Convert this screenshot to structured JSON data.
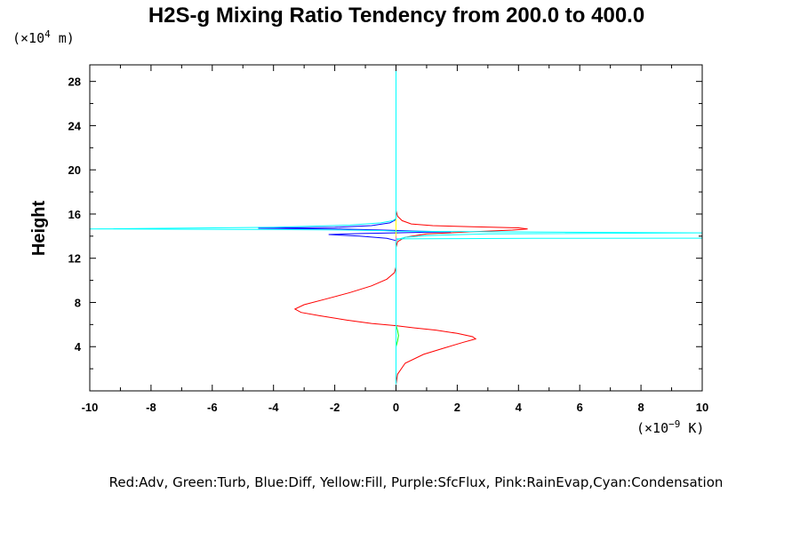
{
  "chart_data": {
    "type": "line",
    "title": "H2S-g Mixing Ratio Tendency from 200.0 to 400.0",
    "ylabel": "Height",
    "y_unit_prefix": "(×10",
    "y_unit_exp": "4",
    "y_unit_suffix": " m)",
    "x_unit_prefix": "(×10",
    "x_unit_exp": "−9",
    "x_unit_suffix": " K)",
    "xlim": [
      -10,
      10
    ],
    "ylim": [
      0,
      29.5
    ],
    "x_ticks": [
      -10,
      -8,
      -6,
      -4,
      -2,
      0,
      2,
      4,
      6,
      8,
      10
    ],
    "x_tick_labels": [
      "-10",
      "-8",
      "-6",
      "-4",
      "-2",
      "0",
      "2",
      "4",
      "6",
      "8",
      "10"
    ],
    "y_ticks": [
      4,
      8,
      12,
      16,
      20,
      24,
      28
    ],
    "y_tick_labels": [
      "4",
      "8",
      "12",
      "16",
      "20",
      "24",
      "28"
    ],
    "legend_text": "Red:Adv, Green:Turb, Blue:Diff, Yellow:Fill, Purple:SfcFlux, Pink:RainEvap,Cyan:Condensation",
    "series": [
      {
        "name": "Adv",
        "color": "#ff0000",
        "points": [
          [
            0,
            0.6
          ],
          [
            0.05,
            1.5
          ],
          [
            0.3,
            2.5
          ],
          [
            0.9,
            3.3
          ],
          [
            1.6,
            3.9
          ],
          [
            2.2,
            4.4
          ],
          [
            2.6,
            4.7
          ],
          [
            2.5,
            4.9
          ],
          [
            2.0,
            5.2
          ],
          [
            1.3,
            5.5
          ],
          [
            0.6,
            5.7
          ],
          [
            0.0,
            5.9
          ],
          [
            -0.8,
            6.1
          ],
          [
            -1.6,
            6.4
          ],
          [
            -2.5,
            6.8
          ],
          [
            -3.1,
            7.1
          ],
          [
            -3.3,
            7.4
          ],
          [
            -3.0,
            7.8
          ],
          [
            -2.3,
            8.3
          ],
          [
            -1.5,
            8.9
          ],
          [
            -0.8,
            9.5
          ],
          [
            -0.3,
            10.1
          ],
          [
            -0.05,
            10.7
          ],
          [
            0,
            11.2
          ],
          [
            0,
            13.0
          ],
          [
            0.05,
            13.5
          ],
          [
            0.3,
            13.9
          ],
          [
            1.0,
            14.2
          ],
          [
            2.5,
            14.4
          ],
          [
            3.8,
            14.55
          ],
          [
            4.3,
            14.65
          ],
          [
            4.0,
            14.75
          ],
          [
            2.5,
            14.85
          ],
          [
            1.2,
            14.95
          ],
          [
            0.5,
            15.1
          ],
          [
            0.2,
            15.4
          ],
          [
            0.05,
            15.8
          ],
          [
            0,
            16.3
          ]
        ]
      },
      {
        "name": "Turb",
        "color": "#00ff00",
        "points": [
          [
            0,
            0.6
          ],
          [
            0,
            4.0
          ],
          [
            0.05,
            4.5
          ],
          [
            0.08,
            5.0
          ],
          [
            0.05,
            5.5
          ],
          [
            0,
            5.9
          ],
          [
            0,
            13.5
          ]
        ]
      },
      {
        "name": "Diff",
        "color": "#0000ff",
        "points": [
          [
            0,
            13.6
          ],
          [
            -0.3,
            13.8
          ],
          [
            -1.2,
            14.0
          ],
          [
            -2.2,
            14.15
          ],
          [
            -1.0,
            14.25
          ],
          [
            0,
            14.3
          ],
          [
            0.8,
            14.35
          ],
          [
            1.8,
            14.4
          ],
          [
            0.8,
            14.45
          ],
          [
            -0.4,
            14.55
          ],
          [
            -2.0,
            14.65
          ],
          [
            -4.5,
            14.72
          ],
          [
            -2.0,
            14.8
          ],
          [
            -0.8,
            14.95
          ],
          [
            -0.2,
            15.2
          ],
          [
            0,
            15.5
          ]
        ]
      },
      {
        "name": "Fill",
        "color": "#ffff00",
        "points": [
          [
            0,
            0.6
          ],
          [
            0,
            16.0
          ]
        ]
      },
      {
        "name": "SfcFlux",
        "color": "#800080",
        "points": [
          [
            0,
            0.6
          ],
          [
            0,
            1.0
          ]
        ]
      },
      {
        "name": "RainEvap",
        "color": "#ff69b4",
        "points": [
          [
            0,
            13.5
          ],
          [
            0,
            14.0
          ]
        ]
      },
      {
        "name": "Condensation",
        "color": "#00ffff",
        "points": [
          [
            0,
            29.5
          ],
          [
            0,
            15.6
          ],
          [
            -0.1,
            15.4
          ],
          [
            -0.5,
            15.2
          ],
          [
            -1.5,
            15.0
          ],
          [
            -4.0,
            14.8
          ],
          [
            -10,
            14.65
          ],
          [
            -4.0,
            14.6
          ],
          [
            -1.5,
            14.55
          ],
          [
            -0.4,
            14.5
          ],
          [
            0,
            14.45
          ],
          [
            3.0,
            14.4
          ],
          [
            10,
            14.3
          ],
          [
            3.0,
            14.2
          ],
          [
            1.0,
            14.05
          ],
          [
            0.3,
            13.9
          ],
          [
            0.05,
            13.7
          ],
          [
            0,
            13.5
          ],
          [
            0,
            0.6
          ]
        ]
      },
      {
        "name": "Condensation",
        "color": "#00ffff",
        "points": [
          [
            0,
            13.75
          ],
          [
            2.0,
            13.78
          ],
          [
            4.5,
            13.8
          ],
          [
            10,
            13.82
          ]
        ]
      }
    ]
  }
}
